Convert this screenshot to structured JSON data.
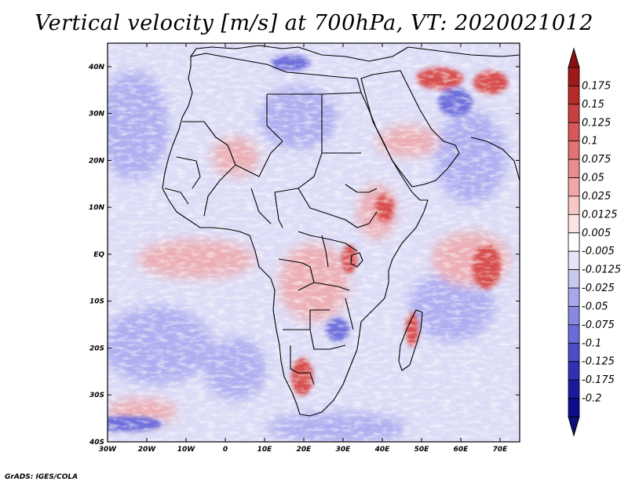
{
  "title": "Vertical velocity [m/s] at 700hPa, VT: 2020021012",
  "credit": "GrADS: IGES/COLA",
  "map": {
    "variable": "Vertical velocity",
    "units": "m/s",
    "level": "700hPa",
    "valid_time": "2020021012",
    "lon_range": [
      -30,
      75
    ],
    "lat_range": [
      -40,
      45
    ],
    "lat_ticks": [
      {
        "value": 40,
        "label": "40N"
      },
      {
        "value": 30,
        "label": "30N"
      },
      {
        "value": 20,
        "label": "20N"
      },
      {
        "value": 10,
        "label": "10N"
      },
      {
        "value": 0,
        "label": "EQ"
      },
      {
        "value": -10,
        "label": "10S"
      },
      {
        "value": -20,
        "label": "20S"
      },
      {
        "value": -30,
        "label": "30S"
      },
      {
        "value": -40,
        "label": "40S"
      }
    ],
    "lon_ticks": [
      {
        "value": -30,
        "label": "30W"
      },
      {
        "value": -20,
        "label": "20W"
      },
      {
        "value": -10,
        "label": "10W"
      },
      {
        "value": 0,
        "label": "0"
      },
      {
        "value": 10,
        "label": "10E"
      },
      {
        "value": 20,
        "label": "20E"
      },
      {
        "value": 30,
        "label": "30E"
      },
      {
        "value": 40,
        "label": "40E"
      },
      {
        "value": 50,
        "label": "50E"
      },
      {
        "value": 60,
        "label": "60E"
      },
      {
        "value": 70,
        "label": "70E"
      }
    ]
  },
  "colorbar": {
    "labels": [
      "0.175",
      "0.15",
      "0.125",
      "0.1",
      "0.075",
      "0.05",
      "0.025",
      "0.0125",
      "0.005",
      "-0.005",
      "-0.0125",
      "-0.025",
      "-0.05",
      "-0.075",
      "-0.1",
      "-0.125",
      "-0.175",
      "-0.2"
    ],
    "colors": [
      "#a01818",
      "#b82a2a",
      "#c84040",
      "#d85858",
      "#e47272",
      "#ec8c8c",
      "#f2a8a8",
      "#f8c8c8",
      "#fce4e4",
      "#ffffff",
      "#e4e4f8",
      "#c8c8f0",
      "#a8a8ec",
      "#8888e0",
      "#6c6cd8",
      "#4c4cc8",
      "#3030b4",
      "#1a1aa0",
      "#0c0c8c"
    ],
    "tip_top_color": "#8c1010",
    "tip_bottom_color": "#10107c"
  },
  "palette": {
    "ocean_base": "#dcdcf6",
    "neg_strong": "#7070dc",
    "neg_mid": "#a0a0ee",
    "pos_mid": "#f0a0a0",
    "pos_strong": "#d85050",
    "boundary": "#000000"
  }
}
